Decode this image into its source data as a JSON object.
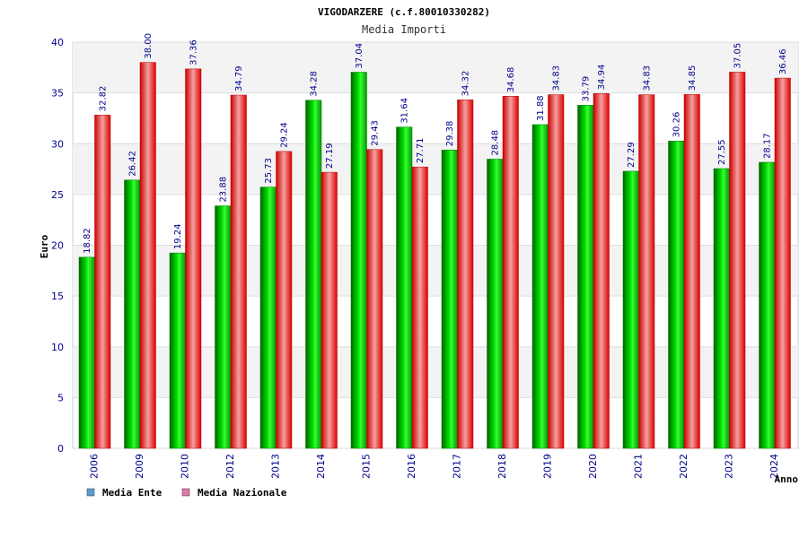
{
  "chart_data": {
    "type": "bar",
    "title": "VIGODARZERE (c.f.80010330282)",
    "subtitle": "Media Importi",
    "ylabel": "Euro",
    "xlabel": "Anno",
    "ylim": [
      0,
      40
    ],
    "yticks": [
      0,
      5,
      10,
      15,
      20,
      25,
      30,
      35,
      40
    ],
    "grid": true,
    "legend_position": "bottom-left",
    "categories": [
      "2006",
      "2009",
      "2010",
      "2012",
      "2013",
      "2014",
      "2015",
      "2016",
      "2017",
      "2018",
      "2019",
      "2020",
      "2021",
      "2022",
      "2023",
      "2024"
    ],
    "series": [
      {
        "name": "Media Ente",
        "legend_color": "#5b9bd5",
        "bar_color": "#00cc00",
        "values": [
          18.82,
          26.42,
          19.24,
          23.88,
          25.73,
          34.28,
          37.04,
          31.64,
          29.38,
          28.48,
          31.88,
          33.79,
          27.29,
          30.26,
          27.55,
          28.17
        ],
        "labels": [
          "18.82",
          "26.42",
          "19.24",
          "23.88",
          "25.73",
          "34.28",
          "37.04",
          "31.64",
          "29.38",
          "28.48",
          "31.88",
          "33.79",
          "27.29",
          "30.26",
          "27.55",
          "28.17"
        ]
      },
      {
        "name": "Media Nazionale",
        "legend_color": "#e07aa8",
        "bar_color": "#ee1111",
        "values": [
          32.82,
          38.0,
          37.36,
          34.79,
          29.24,
          27.19,
          29.43,
          27.71,
          34.32,
          34.68,
          34.83,
          34.94,
          34.83,
          34.85,
          37.05,
          36.46
        ],
        "labels": [
          "32.82",
          "38.00",
          "37.36",
          "34.79",
          "29.24",
          "27.19",
          "29.43",
          "27.71",
          "34.32",
          "34.68",
          "34.83",
          "34.94",
          "34.83",
          "34.85",
          "37.05",
          "36.46"
        ]
      }
    ]
  }
}
